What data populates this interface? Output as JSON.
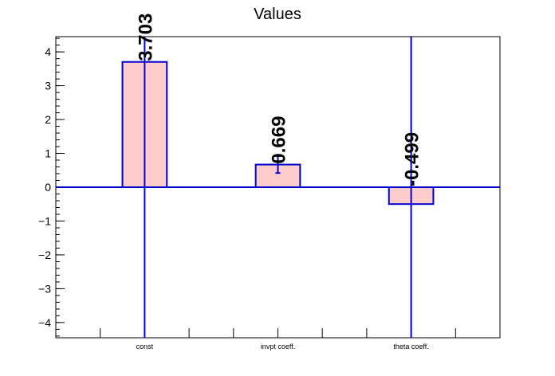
{
  "chart_data": {
    "type": "bar",
    "title": "Values",
    "categories": [
      "const",
      "invpt coeff.",
      "theta coeff."
    ],
    "values": [
      3.703,
      0.669,
      -0.499
    ],
    "value_labels": [
      "3.703",
      "0.669",
      "-0.499"
    ],
    "errors": [
      20.0,
      0.25,
      20.0
    ],
    "ylim": [
      -4.45,
      4.45
    ],
    "yticks": [
      -4,
      -3,
      -2,
      -1,
      0,
      1,
      2,
      3,
      4
    ],
    "ytick_labels": [
      "−4",
      "−3",
      "−2",
      "−1",
      "0",
      "1",
      "2",
      "3",
      "4"
    ],
    "xlabel": "",
    "ylabel": "",
    "grid": false,
    "colors": {
      "bar_fill": "#ffcccc",
      "bar_edge": "#0000cc",
      "axis": "#000000"
    }
  }
}
